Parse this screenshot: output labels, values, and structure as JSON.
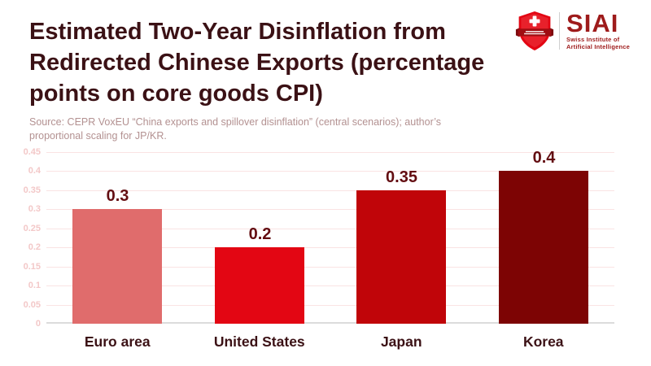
{
  "header": {
    "title_lines": [
      "Estimated Two-Year Disinflation from",
      "Redirected Chinese Exports (percentage",
      "points on core goods CPI)"
    ]
  },
  "logo": {
    "brand": "SIAI",
    "tagline": [
      "Swiss Institute of",
      "Artificial Intelligence"
    ],
    "shield_icon": "swiss-shield-cross-ribbon-icon"
  },
  "source_note": {
    "lines": [
      "Source: CEPR VoxEU “China exports and spillover disinflation” (central scenarios); author’s",
      "proportional scaling for JP/KR."
    ]
  },
  "chart_data": {
    "type": "bar",
    "title": "Estimated Two-Year Disinflation from Redirected Chinese Exports (percentage points on core goods CPI)",
    "categories": [
      "Euro area",
      "United States",
      "Japan",
      "Korea"
    ],
    "values": [
      0.3,
      0.2,
      0.35,
      0.4
    ],
    "value_labels": [
      "0.3",
      "0.2",
      "0.35",
      "0.4"
    ],
    "bar_colors": [
      "#e06c6c",
      "#e30613",
      "#c00509",
      "#7d0404"
    ],
    "xlabel": "",
    "ylabel": "",
    "ylim": [
      0,
      0.45
    ],
    "ytick_step": 0.05,
    "yticks": [
      "0",
      "0.05",
      "0.1",
      "0.15",
      "0.2",
      "0.25",
      "0.3",
      "0.35",
      "0.4",
      "0.45"
    ],
    "grid": "horizontal",
    "legend": "none"
  },
  "colors": {
    "background": "#ffffff",
    "title_text": "#3b1115",
    "value_label_text": "#630d11",
    "category_label_text": "#3b1115",
    "ytick_text": "#f3c8c8",
    "gridline": "#fae3e3",
    "baseline": "#dcdcdc",
    "source_text": "#b39191",
    "brand_red": "#9e1b1b",
    "shield_red": "#e30613",
    "ribbon_dark_red": "#a00d12"
  }
}
